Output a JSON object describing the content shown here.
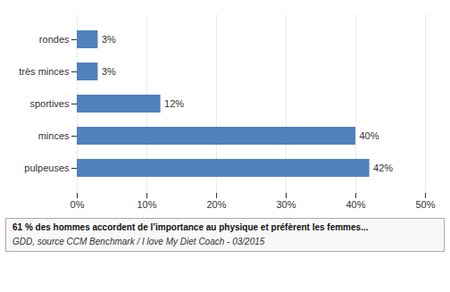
{
  "chart_data": {
    "type": "bar",
    "orientation": "horizontal",
    "categories": [
      "pulpeuses",
      "minces",
      "sportives",
      "très minces",
      "rondes"
    ],
    "values": [
      42,
      40,
      12,
      3,
      3
    ],
    "value_labels": [
      "42%",
      "40%",
      "12%",
      "3%",
      "3%"
    ],
    "data_labels": true,
    "color": "#4f81bd",
    "xlim": [
      0,
      50
    ],
    "xticks": [
      {
        "value": 0,
        "label": "0%"
      },
      {
        "value": 10,
        "label": "10%"
      },
      {
        "value": 20,
        "label": "20%"
      },
      {
        "value": 30,
        "label": "30%"
      },
      {
        "value": 40,
        "label": "40%"
      },
      {
        "value": 50,
        "label": "50%"
      }
    ],
    "grid": true,
    "caption": "61 % des hommes accordent de l’importance au physique et préfèrent les femmes...",
    "source": "GDD, source CCM Benchmark / I love My Diet Coach - 03/2015"
  }
}
